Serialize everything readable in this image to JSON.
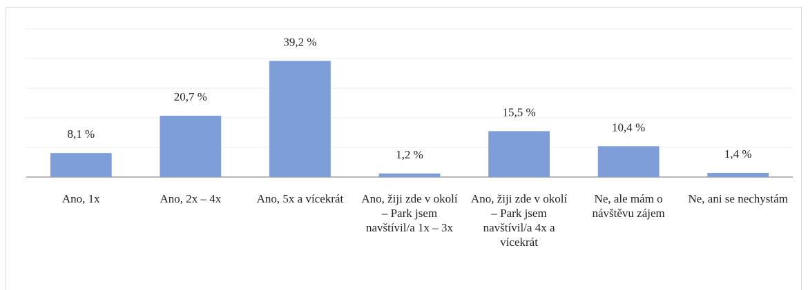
{
  "chart_data": {
    "type": "bar",
    "categories": [
      "Ano, 1x",
      "Ano, 2x – 4x",
      "Ano, 5x a vícekrát",
      "Ano, žiji zde v okolí – Park jsem navštívil/a 1x – 3x",
      "Ano, žiji zde v okolí – Park jsem navštívil/a 4x a vícekrát",
      "Ne, ale mám o návštěvu zájem",
      "Ne, ani se nechystám"
    ],
    "values": [
      8.1,
      20.7,
      39.2,
      1.2,
      15.5,
      10.4,
      1.4
    ],
    "value_labels": [
      "8,1 %",
      "20,7 %",
      "39,2 %",
      "1,2 %",
      "15,5 %",
      "10,4 %",
      "1,4 %"
    ],
    "color": "#7d9ed8",
    "ylim": [
      0,
      50
    ],
    "yticks": [
      0,
      10,
      20,
      30,
      40,
      50
    ],
    "grid": true
  }
}
